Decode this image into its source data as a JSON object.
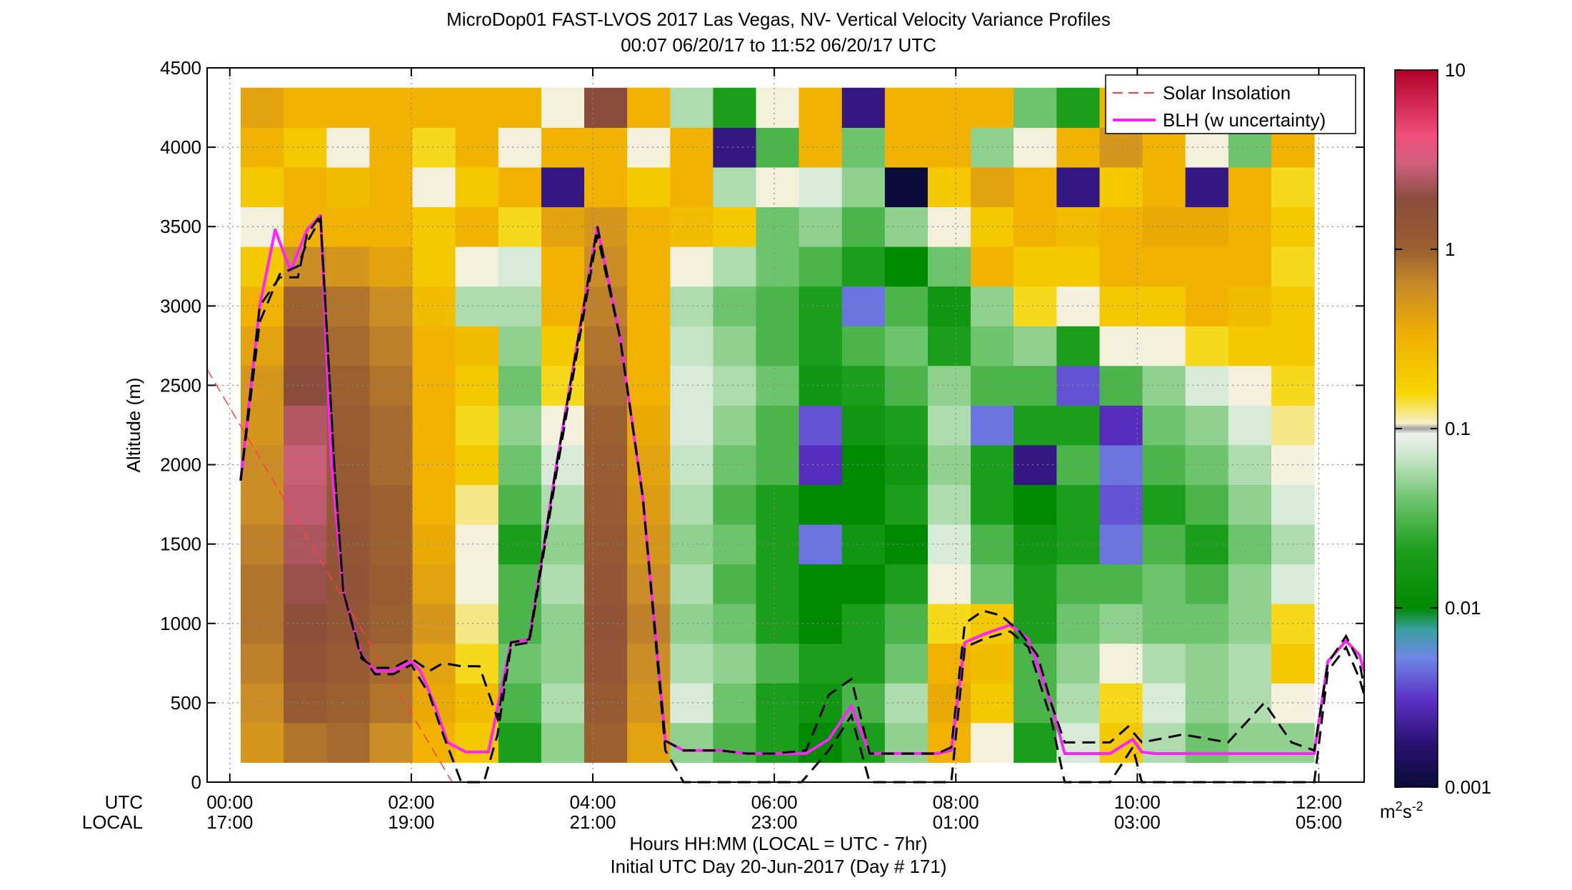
{
  "chart_data": {
    "type": "heatmap",
    "title": "MicroDop01 FAST-LVOS 2017 Las Vegas, NV- Vertical Velocity Variance Profiles",
    "subtitle": "00:07 06/20/17 to 11:52 06/20/17  UTC",
    "ylabel": "Altitude (m)",
    "xlabel": "Hours HH:MM  (LOCAL = UTC - 7hr)",
    "xlabel2": "Initial UTC Day 20-Jun-2017 (Day # 171)",
    "x_row_labels": [
      "UTC",
      "LOCAL"
    ],
    "x_unit": "hours UTC",
    "xlim": [
      -0.25,
      12.5
    ],
    "ylim": [
      0,
      4500
    ],
    "y_ticks": [
      0,
      500,
      1000,
      1500,
      2000,
      2500,
      3000,
      3500,
      4000,
      4500
    ],
    "x_ticks": [
      {
        "hour": 0,
        "utc": "00:00",
        "local": "17:00"
      },
      {
        "hour": 2,
        "utc": "02:00",
        "local": "19:00"
      },
      {
        "hour": 4,
        "utc": "04:00",
        "local": "21:00"
      },
      {
        "hour": 6,
        "utc": "06:00",
        "local": "23:00"
      },
      {
        "hour": 8,
        "utc": "08:00",
        "local": "01:00"
      },
      {
        "hour": 10,
        "utc": "10:00",
        "local": "03:00"
      },
      {
        "hour": 12,
        "utc": "12:00",
        "local": "05:00"
      }
    ],
    "grid": true,
    "legend": {
      "placement": "top-right",
      "entries": [
        {
          "label": "Solar Insolation",
          "color": "#ff4040",
          "style": "dashed"
        },
        {
          "label": "BLH (w uncertainty)",
          "color": "#ff22ff",
          "style": "solid"
        }
      ]
    },
    "colorbar": {
      "scale": "log",
      "range": [
        0.001,
        10
      ],
      "ticks": [
        {
          "value": 10,
          "label": "10"
        },
        {
          "value": 1,
          "label": "1"
        },
        {
          "value": 0.1,
          "label": "0.1"
        },
        {
          "value": 0.01,
          "label": "0.01"
        },
        {
          "value": 0.001,
          "label": "0.001"
        }
      ],
      "unit_base": "m",
      "unit_exp1": "2",
      "unit_mid": "s",
      "unit_exp2": "-2"
    },
    "colors": {
      "blh": "#ff22ff",
      "uncertainty": "#000000",
      "solar": "#ff4040",
      "grid": "#888888"
    },
    "variance_profiles_m2s2": {
      "altitude_m": [
        250,
        500,
        750,
        1000,
        1250,
        1500,
        1750,
        2000,
        2250,
        2500,
        2750,
        3000,
        3250,
        3500,
        3750,
        4000,
        4250
      ],
      "times_h": [
        0.17,
        0.5,
        1.0,
        1.5,
        2.0,
        2.5,
        3.0,
        3.5,
        4.0,
        4.5,
        5.0,
        5.5,
        6.0,
        6.5,
        7.0,
        7.5,
        8.0,
        8.5,
        9.0,
        9.5,
        10.0,
        10.5,
        11.0,
        11.5,
        11.8
      ],
      "values": [
        [
          0.5,
          0.8,
          0.9,
          0.6,
          0.3,
          0.2,
          0.02,
          0.05,
          1.0,
          0.4,
          0.05,
          0.03,
          0.02,
          0.01,
          0.02,
          0.05,
          0.3,
          0.1,
          0.02,
          0.08,
          0.2,
          0.06,
          0.04,
          0.05,
          0.05
        ],
        [
          0.6,
          1.2,
          1.0,
          0.8,
          0.35,
          0.25,
          0.03,
          0.06,
          1.2,
          0.5,
          0.08,
          0.04,
          0.02,
          0.015,
          0.03,
          0.06,
          0.35,
          0.2,
          0.03,
          0.06,
          0.15,
          0.08,
          0.05,
          0.06,
          0.1
        ],
        [
          0.7,
          1.5,
          1.2,
          0.9,
          0.4,
          0.15,
          0.04,
          0.05,
          1.4,
          0.6,
          0.06,
          0.05,
          0.03,
          0.02,
          0.02,
          0.04,
          0.3,
          0.25,
          0.03,
          0.05,
          0.1,
          0.06,
          0.05,
          0.06,
          0.2
        ],
        [
          0.8,
          1.8,
          1.4,
          1.0,
          0.5,
          0.12,
          0.03,
          0.05,
          1.5,
          0.7,
          0.05,
          0.04,
          0.02,
          0.01,
          0.02,
          0.03,
          0.15,
          0.2,
          0.02,
          0.04,
          0.05,
          0.04,
          0.04,
          0.05,
          0.15
        ],
        [
          0.8,
          2.2,
          1.5,
          1.1,
          0.4,
          0.1,
          0.03,
          0.06,
          1.4,
          0.6,
          0.06,
          0.03,
          0.02,
          0.01,
          0.01,
          0.02,
          0.1,
          0.04,
          0.02,
          0.03,
          0.03,
          0.04,
          0.03,
          0.05,
          0.08
        ],
        [
          0.7,
          2.5,
          1.4,
          1.0,
          0.35,
          0.1,
          0.02,
          0.05,
          1.3,
          0.5,
          0.05,
          0.04,
          0.02,
          0.005,
          0.015,
          0.01,
          0.08,
          0.03,
          0.015,
          0.02,
          0.005,
          0.03,
          0.02,
          0.04,
          0.06
        ],
        [
          0.6,
          2.8,
          1.3,
          1.0,
          0.3,
          0.12,
          0.03,
          0.06,
          1.2,
          0.45,
          0.06,
          0.03,
          0.02,
          0.01,
          0.01,
          0.02,
          0.06,
          0.02,
          0.01,
          0.02,
          0.004,
          0.02,
          0.03,
          0.05,
          0.08
        ],
        [
          0.6,
          3.0,
          1.2,
          0.9,
          0.3,
          0.2,
          0.04,
          0.08,
          1.1,
          0.4,
          0.07,
          0.04,
          0.03,
          0.003,
          0.01,
          0.015,
          0.05,
          0.02,
          0.002,
          0.03,
          0.005,
          0.03,
          0.04,
          0.06,
          0.1
        ],
        [
          0.5,
          2.6,
          1.1,
          0.9,
          0.3,
          0.15,
          0.05,
          0.1,
          1.0,
          0.35,
          0.08,
          0.05,
          0.03,
          0.004,
          0.015,
          0.02,
          0.06,
          0.005,
          0.02,
          0.02,
          0.003,
          0.04,
          0.05,
          0.08,
          0.12
        ],
        [
          0.5,
          2.0,
          1.0,
          0.8,
          0.3,
          0.2,
          0.04,
          0.15,
          0.9,
          0.3,
          0.08,
          0.06,
          0.04,
          0.015,
          0.02,
          0.03,
          0.05,
          0.03,
          0.03,
          0.004,
          0.03,
          0.05,
          0.08,
          0.1,
          0.15
        ],
        [
          0.4,
          1.5,
          0.9,
          0.7,
          0.3,
          0.25,
          0.05,
          0.2,
          0.8,
          0.3,
          0.07,
          0.05,
          0.03,
          0.02,
          0.03,
          0.04,
          0.02,
          0.04,
          0.05,
          0.02,
          0.1,
          0.1,
          0.15,
          0.2,
          0.2
        ],
        [
          0.3,
          1.0,
          0.8,
          0.6,
          0.25,
          0.06,
          0.06,
          0.3,
          0.7,
          0.3,
          0.06,
          0.04,
          0.03,
          0.02,
          0.005,
          0.03,
          0.015,
          0.05,
          0.15,
          0.1,
          0.2,
          0.2,
          0.3,
          0.25,
          0.2
        ],
        [
          0.2,
          0.6,
          0.5,
          0.4,
          0.2,
          0.1,
          0.08,
          0.3,
          0.6,
          0.3,
          0.1,
          0.06,
          0.04,
          0.03,
          0.02,
          0.01,
          0.04,
          0.3,
          0.2,
          0.2,
          0.3,
          0.3,
          0.3,
          0.3,
          0.15
        ],
        [
          0.1,
          0.3,
          0.3,
          0.3,
          0.2,
          0.3,
          0.15,
          0.4,
          0.5,
          0.3,
          0.25,
          0.2,
          0.04,
          0.05,
          0.03,
          0.05,
          0.1,
          0.2,
          0.3,
          0.25,
          0.3,
          0.35,
          0.35,
          0.3,
          0.2
        ],
        [
          0.2,
          0.3,
          0.25,
          0.3,
          0.1,
          0.2,
          0.3,
          0.002,
          0.3,
          0.2,
          0.3,
          0.06,
          0.1,
          0.08,
          0.05,
          0.001,
          0.2,
          0.4,
          0.3,
          0.002,
          0.2,
          0.3,
          0.002,
          0.3,
          0.15
        ],
        [
          0.3,
          0.2,
          0.1,
          0.3,
          0.15,
          0.3,
          0.1,
          0.3,
          0.3,
          0.1,
          0.3,
          0.002,
          0.03,
          0.3,
          0.04,
          0.3,
          0.3,
          0.05,
          0.1,
          0.3,
          0.5,
          0.3,
          0.1,
          0.04,
          0.3
        ],
        [
          0.4,
          0.3,
          0.3,
          0.3,
          0.3,
          0.3,
          0.3,
          0.1,
          2.0,
          0.3,
          0.06,
          0.02,
          0.1,
          0.3,
          0.002,
          0.3,
          0.3,
          0.3,
          0.04,
          0.02,
          0.3,
          0.3,
          0.1,
          0.04,
          0.3
        ]
      ]
    },
    "blh_series": {
      "name": "BLH (w uncertainty)",
      "points": [
        [
          0.12,
          1900
        ],
        [
          0.33,
          3000
        ],
        [
          0.5,
          3480
        ],
        [
          0.67,
          3220
        ],
        [
          0.85,
          3480
        ],
        [
          1.0,
          3570
        ],
        [
          1.12,
          2000
        ],
        [
          1.25,
          1200
        ],
        [
          1.45,
          800
        ],
        [
          1.6,
          700
        ],
        [
          1.8,
          700
        ],
        [
          2.0,
          760
        ],
        [
          2.1,
          700
        ],
        [
          2.25,
          500
        ],
        [
          2.4,
          250
        ],
        [
          2.6,
          190
        ],
        [
          2.85,
          190
        ],
        [
          3.1,
          880
        ],
        [
          3.3,
          900
        ],
        [
          3.6,
          2000
        ],
        [
          4.05,
          3500
        ],
        [
          4.3,
          2800
        ],
        [
          4.55,
          1800
        ],
        [
          4.8,
          260
        ],
        [
          5.0,
          200
        ],
        [
          5.4,
          200
        ],
        [
          5.7,
          180
        ],
        [
          6.0,
          180
        ],
        [
          6.35,
          180
        ],
        [
          6.6,
          270
        ],
        [
          6.85,
          480
        ],
        [
          7.05,
          180
        ],
        [
          7.4,
          180
        ],
        [
          7.8,
          180
        ],
        [
          7.95,
          200
        ],
        [
          8.1,
          880
        ],
        [
          8.3,
          930
        ],
        [
          8.6,
          990
        ],
        [
          8.8,
          900
        ],
        [
          9.05,
          500
        ],
        [
          9.2,
          180
        ],
        [
          9.5,
          180
        ],
        [
          9.7,
          180
        ],
        [
          9.95,
          270
        ],
        [
          10.05,
          190
        ],
        [
          10.2,
          180
        ],
        [
          10.6,
          180
        ],
        [
          11.0,
          180
        ],
        [
          11.5,
          180
        ],
        [
          11.95,
          180
        ],
        [
          12.1,
          760
        ],
        [
          12.3,
          890
        ],
        [
          12.45,
          800
        ],
        [
          12.5,
          700
        ]
      ]
    },
    "blh_uncertainty_upper": {
      "points": [
        [
          0.12,
          1900
        ],
        [
          0.33,
          3000
        ],
        [
          0.55,
          3180
        ],
        [
          0.75,
          3180
        ],
        [
          0.85,
          3450
        ],
        [
          1.0,
          3570
        ],
        [
          1.15,
          2000
        ],
        [
          1.25,
          1200
        ],
        [
          1.45,
          780
        ],
        [
          1.6,
          720
        ],
        [
          1.8,
          720
        ],
        [
          2.0,
          780
        ],
        [
          2.2,
          700
        ],
        [
          2.35,
          750
        ],
        [
          2.55,
          730
        ],
        [
          2.75,
          730
        ],
        [
          2.95,
          400
        ],
        [
          3.1,
          880
        ],
        [
          3.3,
          900
        ],
        [
          3.6,
          2000
        ],
        [
          4.05,
          3500
        ],
        [
          4.3,
          2800
        ],
        [
          4.55,
          1800
        ],
        [
          4.8,
          260
        ],
        [
          5.0,
          200
        ],
        [
          5.4,
          200
        ],
        [
          5.7,
          180
        ],
        [
          6.0,
          180
        ],
        [
          6.35,
          200
        ],
        [
          6.6,
          550
        ],
        [
          6.85,
          650
        ],
        [
          7.05,
          180
        ],
        [
          7.4,
          180
        ],
        [
          7.8,
          180
        ],
        [
          7.95,
          220
        ],
        [
          8.1,
          1000
        ],
        [
          8.3,
          1080
        ],
        [
          8.5,
          1050
        ],
        [
          8.7,
          950
        ],
        [
          8.9,
          800
        ],
        [
          9.05,
          500
        ],
        [
          9.2,
          250
        ],
        [
          9.7,
          250
        ],
        [
          9.9,
          350
        ],
        [
          10.05,
          250
        ],
        [
          10.5,
          300
        ],
        [
          11.0,
          250
        ],
        [
          11.4,
          500
        ],
        [
          11.7,
          250
        ],
        [
          11.95,
          200
        ],
        [
          12.1,
          750
        ],
        [
          12.3,
          920
        ],
        [
          12.45,
          750
        ],
        [
          12.5,
          600
        ]
      ]
    },
    "blh_uncertainty_lower": {
      "points": [
        [
          0.12,
          1900
        ],
        [
          0.33,
          2900
        ],
        [
          0.55,
          3200
        ],
        [
          0.75,
          3250
        ],
        [
          0.85,
          3400
        ],
        [
          1.0,
          3550
        ],
        [
          1.15,
          2000
        ],
        [
          1.25,
          1200
        ],
        [
          1.45,
          800
        ],
        [
          1.6,
          680
        ],
        [
          1.8,
          680
        ],
        [
          2.0,
          740
        ],
        [
          2.2,
          550
        ],
        [
          2.35,
          300
        ],
        [
          2.55,
          0
        ],
        [
          2.8,
          0
        ],
        [
          2.95,
          300
        ],
        [
          3.1,
          860
        ],
        [
          3.3,
          880
        ],
        [
          3.6,
          1950
        ],
        [
          4.05,
          3450
        ],
        [
          4.3,
          2800
        ],
        [
          4.55,
          1800
        ],
        [
          4.8,
          200
        ],
        [
          5.0,
          0
        ],
        [
          5.5,
          0
        ],
        [
          6.0,
          0
        ],
        [
          6.3,
          0
        ],
        [
          6.6,
          200
        ],
        [
          6.85,
          420
        ],
        [
          7.05,
          0
        ],
        [
          7.4,
          0
        ],
        [
          7.7,
          0
        ],
        [
          7.95,
          0
        ],
        [
          8.1,
          850
        ],
        [
          8.3,
          900
        ],
        [
          8.6,
          950
        ],
        [
          8.8,
          850
        ],
        [
          9.05,
          400
        ],
        [
          9.2,
          0
        ],
        [
          9.5,
          0
        ],
        [
          9.7,
          0
        ],
        [
          9.95,
          220
        ],
        [
          10.05,
          0
        ],
        [
          10.3,
          0
        ],
        [
          10.8,
          0
        ],
        [
          11.2,
          0
        ],
        [
          11.6,
          0
        ],
        [
          11.95,
          0
        ],
        [
          12.1,
          700
        ],
        [
          12.3,
          850
        ],
        [
          12.45,
          650
        ],
        [
          12.5,
          550
        ]
      ]
    },
    "solar_series": {
      "name": "Solar Insolation",
      "points": [
        [
          -0.25,
          2600
        ],
        [
          2.45,
          0
        ]
      ]
    }
  }
}
